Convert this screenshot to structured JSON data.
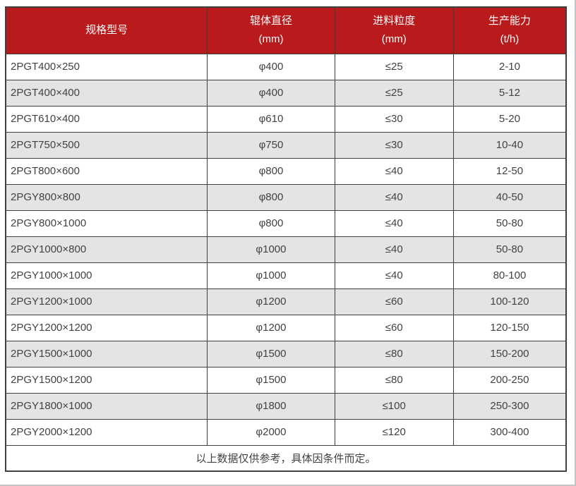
{
  "table": {
    "columns": [
      {
        "label": "规格型号",
        "sub": ""
      },
      {
        "label": "辊体直径",
        "sub": "(mm)"
      },
      {
        "label": "进料粒度",
        "sub": "(mm)"
      },
      {
        "label": "生产能力",
        "sub": "(t/h)"
      }
    ],
    "rows": [
      [
        "2PGT400×250",
        "φ400",
        "≤25",
        "2-10"
      ],
      [
        "2PGT400×400",
        "φ400",
        "≤25",
        "5-12"
      ],
      [
        "2PGT610×400",
        "φ610",
        "≤30",
        "5-20"
      ],
      [
        "2PGT750×500",
        "φ750",
        "≤30",
        "10-40"
      ],
      [
        "2PGT800×600",
        "φ800",
        "≤40",
        "12-50"
      ],
      [
        "2PGY800×800",
        "φ800",
        "≤40",
        "40-50"
      ],
      [
        "2PGY800×1000",
        "φ800",
        "≤40",
        "50-80"
      ],
      [
        "2PGY1000×800",
        "φ1000",
        "≤40",
        "50-80"
      ],
      [
        "2PGY1000×1000",
        "φ1000",
        "≤40",
        "80-100"
      ],
      [
        "2PGY1200×1000",
        "φ1200",
        "≤60",
        "100-120"
      ],
      [
        "2PGY1200×1200",
        "φ1200",
        "≤60",
        "120-150"
      ],
      [
        "2PGY1500×1000",
        "φ1500",
        "≤80",
        "150-200"
      ],
      [
        "2PGY1500×1200",
        "φ1500",
        "≤80",
        "200-250"
      ],
      [
        "2PGY1800×1000",
        "φ1800",
        "≤100",
        "250-300"
      ],
      [
        "2PGY2000×1200",
        "φ2000",
        "≤120",
        "300-400"
      ]
    ],
    "footer_note": "以上数据仅供参考，具体因条件而定。"
  },
  "colors": {
    "header_bg": "#b91a1c",
    "header_text": "#ffffff",
    "row_stripe_bg": "#e4e4e4",
    "row_bg": "#ffffff",
    "border": "#3f3f3f",
    "text": "#424242",
    "page_edge": "#c4c4c4"
  }
}
